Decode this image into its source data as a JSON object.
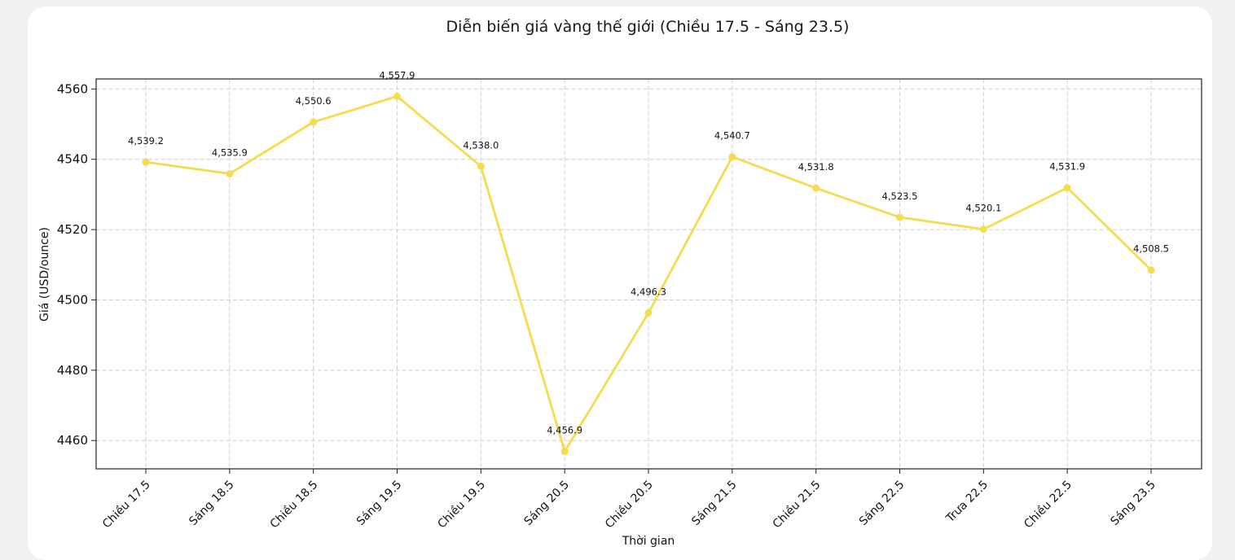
{
  "chart_data": {
    "type": "line",
    "title": "Diễn biến giá vàng thế giới (Chiều 17.5 - Sáng 23.5)",
    "xlabel": "Thời gian",
    "ylabel": "Giá (USD/ounce)",
    "categories": [
      "Chiều 17.5",
      "Sáng 18.5",
      "Chiều 18.5",
      "Sáng 19.5",
      "Chiều 19.5",
      "Sáng 20.5",
      "Chiều 20.5",
      "Sáng 21.5",
      "Chiều 21.5",
      "Sáng 22.5",
      "Trưa 22.5",
      "Chiều 22.5",
      "Sáng 23.5"
    ],
    "values": [
      4539.2,
      4535.9,
      4550.6,
      4557.9,
      4538.0,
      4456.9,
      4496.3,
      4540.7,
      4531.8,
      4523.5,
      4520.1,
      4531.9,
      4508.5
    ],
    "data_labels": [
      "4,539.2",
      "4,535.9",
      "4,550.6",
      "4,557.9",
      "4,538.0",
      "4,456.9",
      "4,496.3",
      "4,540.7",
      "4,531.8",
      "4,523.5",
      "4,520.1",
      "4,531.9",
      "4,508.5"
    ],
    "yticks": [
      4460,
      4480,
      4500,
      4520,
      4540,
      4560
    ],
    "ylim": [
      4451.95,
      4562.85
    ],
    "grid": true,
    "line_color": "#f5dc4e"
  }
}
